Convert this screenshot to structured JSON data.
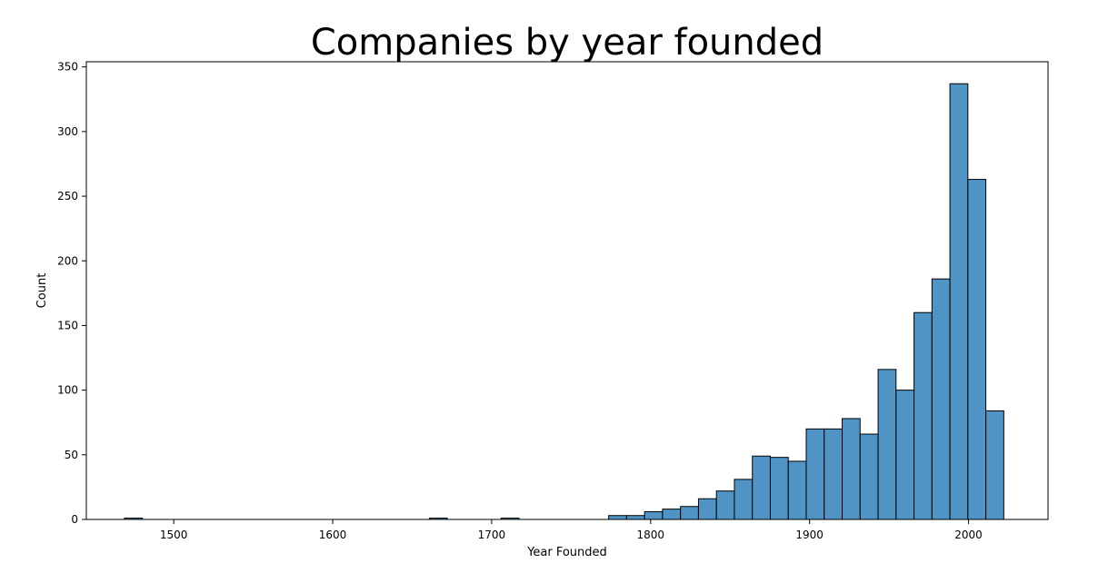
{
  "chart_data": {
    "type": "bar",
    "title": "Companies by year founded",
    "xlabel": "Year Founded",
    "ylabel": "Count",
    "xlim": [
      1445,
      2050
    ],
    "ylim": [
      0,
      354
    ],
    "bin_width": 11.283,
    "xticks": [
      1500,
      1600,
      1700,
      1800,
      1900,
      2000
    ],
    "yticks": [
      0,
      50,
      100,
      150,
      200,
      250,
      300,
      350
    ],
    "bars_bin_start": [
      1469,
      1660.8,
      1705.9,
      1773.6,
      1784.9,
      1796.2,
      1807.5,
      1818.8,
      1830.1,
      1841.4,
      1852.7,
      1864.0,
      1875.3,
      1886.6,
      1897.9,
      1909.2,
      1920.5,
      1931.8,
      1943.1,
      1954.4,
      1965.7,
      1977.0,
      1988.3,
      1999.6,
      2010.9
    ],
    "values": [
      1,
      1,
      1,
      3,
      3,
      6,
      8,
      10,
      16,
      22,
      31,
      49,
      48,
      45,
      70,
      70,
      78,
      66,
      116,
      100,
      160,
      186,
      337,
      263,
      84
    ],
    "bar_color": "#4f94c4",
    "grid": false,
    "legend": "none"
  }
}
